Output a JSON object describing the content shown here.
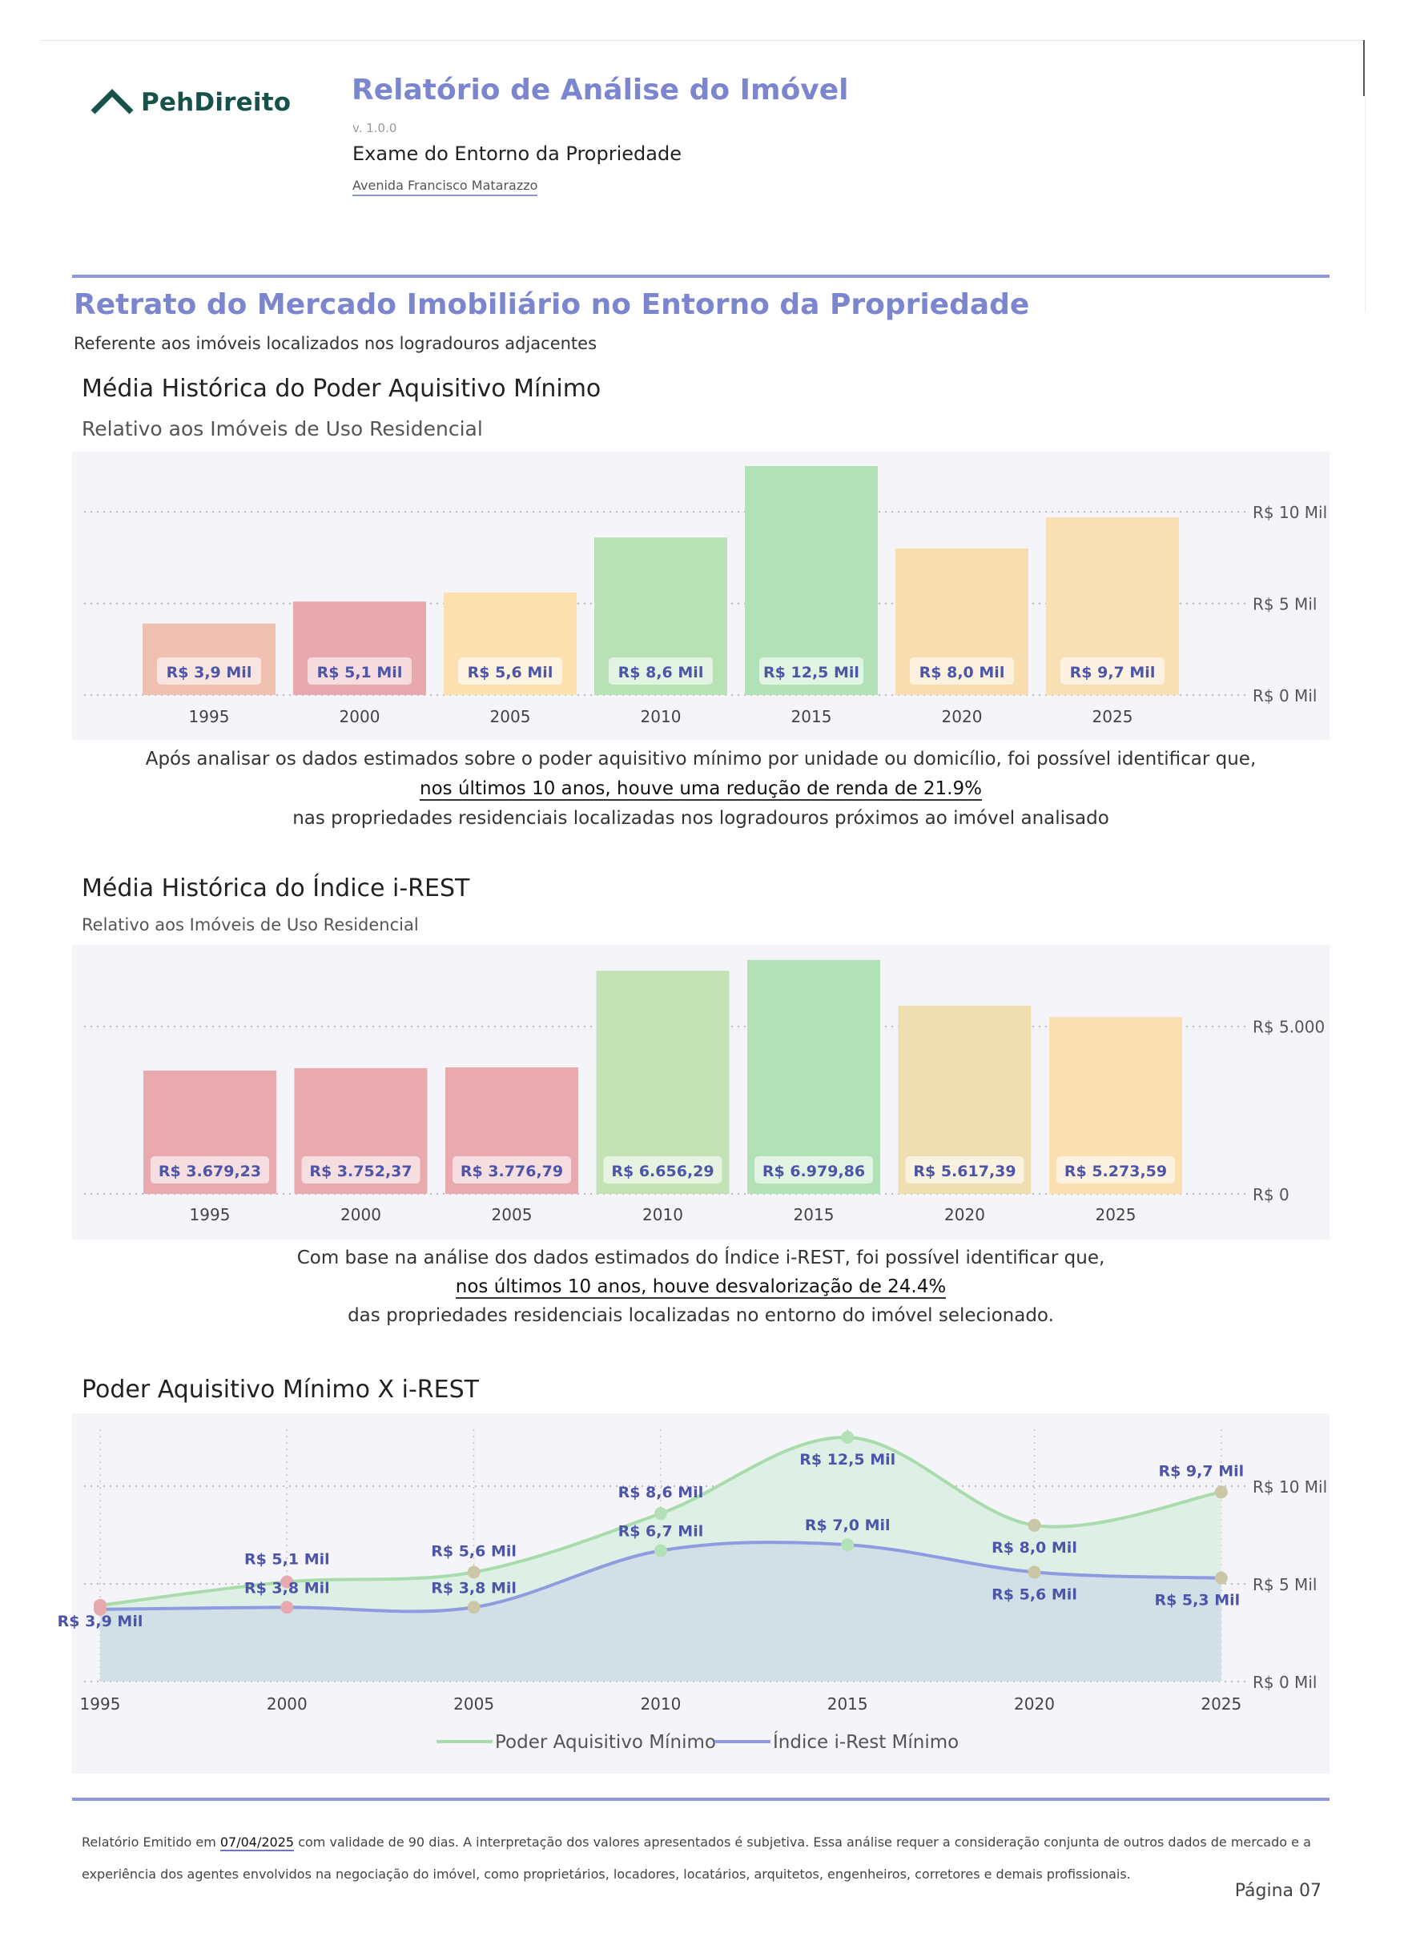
{
  "header": {
    "logo_text": "PehDireito",
    "title": "Relatório de Análise do Imóvel",
    "version": "v. 1.0.0",
    "subtitle": "Exame do Entorno da Propriedade",
    "address": "Avenida Francisco Matarazzo"
  },
  "section": {
    "title": "Retrato do Mercado Imobiliário no Entorno da Propriedade",
    "subtitle": "Referente aos imóveis localizados nos logradouros adjacentes"
  },
  "chart1_text": {
    "title": "Média Histórica do Poder Aquisitivo Mínimo",
    "subtitle": "Relativo aos Imóveis de Uso Residencial",
    "note_before": "Após analisar os dados estimados sobre o poder aquisitivo mínimo por unidade ou domicílio, foi possível identificar que,",
    "note_highlight": "nos últimos 10 anos, houve uma redução de renda de 21.9%",
    "note_after": "nas propriedades residenciais localizadas nos logradouros próximos ao imóvel analisado"
  },
  "chart2_text": {
    "title": "Média Histórica do Índice i-REST",
    "subtitle": "Relativo aos Imóveis de Uso Residencial",
    "note_before": "Com base na análise dos dados estimados do Índice i-REST, foi possível identificar que,",
    "note_highlight": "nos últimos 10 anos, houve desvalorização de 24.4%",
    "note_after": "das propriedades residenciais localizadas no entorno do imóvel selecionado."
  },
  "chart3_text": {
    "title": "Poder Aquisitivo Mínimo X i-REST"
  },
  "chart_data": [
    {
      "type": "bar",
      "categories": [
        "1995",
        "2000",
        "2005",
        "2010",
        "2015",
        "2020",
        "2025"
      ],
      "values": [
        3.9,
        5.1,
        5.6,
        8.6,
        12.5,
        8.0,
        9.7
      ],
      "labels": [
        "R$ 3,9 Mil",
        "R$ 5,1 Mil",
        "R$ 5,6 Mil",
        "R$ 8,6 Mil",
        "R$ 12,5 Mil",
        "R$ 8,0 Mil",
        "R$ 9,7 Mil"
      ],
      "colors": [
        "#efbfb0",
        "#e8a9ae",
        "#fde0b0",
        "#b8e2b6",
        "#b3e1b7",
        "#f8ddb0",
        "#f9dfb4"
      ],
      "ylim": [
        0,
        12.5
      ],
      "yticks": [
        0,
        5,
        10
      ],
      "ytick_labels": [
        "R$ 0 Mil",
        "R$ 5 Mil",
        "R$ 10 Mil"
      ],
      "grid": true
    },
    {
      "type": "bar",
      "categories": [
        "1995",
        "2000",
        "2005",
        "2010",
        "2015",
        "2020",
        "2025"
      ],
      "values": [
        3679.23,
        3752.37,
        3776.79,
        6656.29,
        6979.86,
        5617.39,
        5273.59
      ],
      "labels": [
        "R$ 3.679,23",
        "R$ 3.752,37",
        "R$ 3.776,79",
        "R$ 6.656,29",
        "R$ 6.979,86",
        "R$ 5.617,39",
        "R$ 5.273,59"
      ],
      "colors": [
        "#e8aaae",
        "#e8aaae",
        "#e8aaae",
        "#c3e2b5",
        "#b3e1b7",
        "#efdfb0",
        "#fbdfb0"
      ],
      "ylim": [
        0,
        7000
      ],
      "yticks": [
        0,
        5000
      ],
      "ytick_labels": [
        "R$ 0",
        "R$ 5.000"
      ],
      "grid": true
    },
    {
      "type": "area",
      "x": [
        "1995",
        "2000",
        "2005",
        "2010",
        "2015",
        "2020",
        "2025"
      ],
      "series": [
        {
          "name": "Poder Aquisitivo Mínimo",
          "values": [
            3.9,
            5.1,
            5.6,
            8.6,
            12.5,
            8.0,
            9.7
          ],
          "labels": [
            "R$ 3,9 Mil",
            "R$ 5,1 Mil",
            "R$ 5,6 Mil",
            "R$ 8,6 Mil",
            "R$ 12,5 Mil",
            "R$ 8,0 Mil",
            "R$ 9,7 Mil"
          ],
          "color": "#a8dcaa"
        },
        {
          "name": "Índice i-Rest Mínimo",
          "values": [
            3.7,
            3.8,
            3.8,
            6.7,
            7.0,
            5.6,
            5.3
          ],
          "labels": [
            "",
            "R$ 3,8 Mil",
            "R$ 3,8 Mil",
            "R$ 6,7 Mil",
            "R$ 7,0 Mil",
            "R$ 5,6 Mil",
            "R$ 5,3 Mil"
          ],
          "color": "#8f9be0"
        }
      ],
      "marker_colors": [
        "#e8a9ae",
        "#e8a9ae",
        "#cbc6a6",
        "#b3e1b7",
        "#b3e1b7",
        "#cbc6a6",
        "#cbc6a6"
      ],
      "ylim": [
        0,
        12.5
      ],
      "yticks": [
        0,
        5,
        10
      ],
      "ytick_labels": [
        "R$ 0 Mil",
        "R$ 5 Mil",
        "R$ 10 Mil"
      ],
      "grid": true,
      "legend": "bottom"
    }
  ],
  "footer": {
    "text_before": "Relatório Emitido em",
    "date": "07/04/2025",
    "text_after": "com validade de 90 dias. A interpretação dos valores apresentados é subjetiva. Essa análise requer a consideração conjunta de outros dados de mercado e a experiência dos agentes envolvidos na negociação do imóvel, como proprietários, locadores, locatários, arquitetos, engenheiros, corretores e demais profissionais.",
    "page": "Página 07"
  }
}
